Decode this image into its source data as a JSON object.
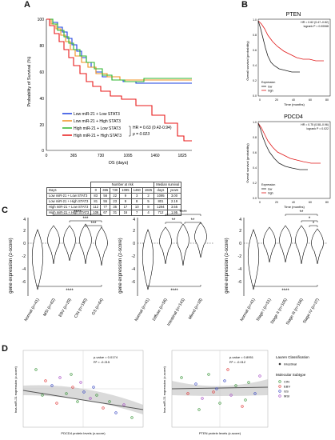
{
  "panel_labels": {
    "a": "A",
    "b": "B",
    "c": "C",
    "d": "D"
  },
  "panel_a": {
    "ylabel": "Probability of Survival (%)",
    "xlabel": "OS (days)",
    "yticks": [
      "100",
      "80",
      "60",
      "40",
      "20",
      "0"
    ],
    "xticks": [
      "0",
      "365",
      "730",
      "1095",
      "1460",
      "1825"
    ],
    "legend": [
      {
        "label": "Low miR-21 + Low STAT3",
        "color": "#1a3fe0"
      },
      {
        "label": "Low miR-21 + High STAT3",
        "color": "#f09020"
      },
      {
        "label": "High miR-21 + Low STAT3",
        "color": "#2db52d"
      },
      {
        "label": "High miR-21 + High STAT3",
        "color": "#e81818"
      }
    ],
    "hr_text": "HR = 0.63 (0.42-0.94)",
    "p_text": "p = 0.023",
    "table": {
      "top_header": "Number at risk",
      "median_header": "Median survival",
      "cols": [
        "Days",
        "0",
        "365",
        "730",
        "1095",
        "1460",
        "1825",
        "days",
        "years"
      ],
      "rows": [
        [
          "Low miR-21 + Low STAT3",
          "83",
          "56",
          "22",
          "9",
          "3",
          "2",
          "1095",
          "3.00"
        ],
        [
          "Low miR-21 + High STAT3",
          "81",
          "55",
          "23",
          "9",
          "8",
          "5",
          "801",
          "2.19"
        ],
        [
          "High miR-21 + Low STAT3",
          "112",
          "77",
          "35",
          "17",
          "10",
          "8",
          "1294",
          "3.55"
        ],
        [
          "High miR-21 + High STAT3",
          "109",
          "67",
          "31",
          "16",
          "7",
          "4",
          "712",
          "1.95"
        ]
      ]
    }
  },
  "panel_b": {
    "plots": [
      {
        "title": "PTEN",
        "hr": "HR = 0.62 (0.47–0.82)",
        "p": "logrank P = 0.00068"
      },
      {
        "title": "PDCD4",
        "hr": "HR = 0.75 (0.58–0.96)",
        "p": "logrank P = 0.022"
      }
    ],
    "ylabel": "Overall survival (probability)",
    "xlabel": "Time (months)",
    "yticks": [
      "0.0",
      "0.2",
      "0.4",
      "0.6",
      "0.8",
      "1.0"
    ],
    "xticks": [
      "0",
      "20",
      "40",
      "60",
      "80"
    ],
    "legend_title": "Expression",
    "legend": [
      {
        "label": "low",
        "color": "#222222"
      },
      {
        "label": "high",
        "color": "#e01818"
      }
    ]
  },
  "panel_c": {
    "ylabel": "gene expression (z-score)",
    "yticks": [
      "4",
      "2",
      "0",
      "-2",
      "-4",
      "-6"
    ],
    "plots": [
      {
        "cats": [
          "Normal (n=41)",
          "MSI (n=62)",
          "EBV (n=29)",
          "CIN (n=190)",
          "GS (n=64)"
        ],
        "sig": [
          "****",
          "***",
          "***",
          "****"
        ]
      },
      {
        "cats": [
          "Normal (n=41)",
          "Diffuse (n=56)",
          "Intestinal (n=143)",
          "Mixed (n=18)"
        ],
        "sig": [
          "****",
          "**",
          "**",
          "****"
        ]
      },
      {
        "cats": [
          "Normal (n=41)",
          "Stage I (n=51)",
          "Stage II (n=105)",
          "Stage III (n=156)",
          "Stage IV (n=37)"
        ],
        "sig": [
          "**",
          "*",
          "*",
          "****"
        ]
      }
    ]
  },
  "panel_d": {
    "plots": [
      {
        "ylabel": "hsa-miR-21 expression (z-score)",
        "xlabel": "PDCD4 protein levels (z-score)",
        "p": "p-value = 0.0174",
        "r2": "R² = -0.215"
      },
      {
        "ylabel": "hsa-miR-21 expression (z-score)",
        "xlabel": "PTEN protein levels (z-score)",
        "p": "p-value = 0.8951",
        "r2": "R² = -0.012"
      }
    ],
    "legend": {
      "title1": "Lauren Classification",
      "items1": [
        {
          "label": "Intestinal",
          "color": "#333333"
        }
      ],
      "title2": "Molecular Subtype",
      "items2": [
        {
          "label": "CIN",
          "color": "#2f8f2f"
        },
        {
          "label": "EBV",
          "color": "#e03030"
        },
        {
          "label": "GS",
          "color": "#3040c0"
        },
        {
          "label": "MSI",
          "color": "#a040c0"
        }
      ]
    }
  }
}
